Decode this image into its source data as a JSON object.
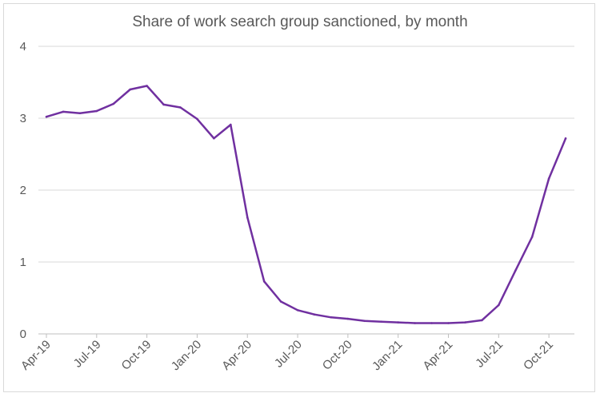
{
  "chart_data": {
    "type": "line",
    "title": "Share of work search group sanctioned, by month",
    "xlabel": "",
    "ylabel": "",
    "ylim": [
      0,
      4
    ],
    "yticks": [
      "0",
      "1",
      "2",
      "3",
      "4"
    ],
    "grid": true,
    "legend": "none",
    "line_color": "#7030a0",
    "categories": [
      "Apr-19",
      "May-19",
      "Jun-19",
      "Jul-19",
      "Aug-19",
      "Sep-19",
      "Oct-19",
      "Nov-19",
      "Dec-19",
      "Jan-20",
      "Feb-20",
      "Mar-20",
      "Apr-20",
      "May-20",
      "Jun-20",
      "Jul-20",
      "Aug-20",
      "Sep-20",
      "Oct-20",
      "Nov-20",
      "Dec-20",
      "Jan-21",
      "Feb-21",
      "Mar-21",
      "Apr-21",
      "May-21",
      "Jun-21",
      "Jul-21",
      "Aug-21",
      "Sep-21",
      "Oct-21",
      "Nov-21"
    ],
    "xtick_labels": [
      {
        "index": 0,
        "label": "Apr-19"
      },
      {
        "index": 3,
        "label": "Jul-19"
      },
      {
        "index": 6,
        "label": "Oct-19"
      },
      {
        "index": 9,
        "label": "Jan-20"
      },
      {
        "index": 12,
        "label": "Apr-20"
      },
      {
        "index": 15,
        "label": "Jul-20"
      },
      {
        "index": 18,
        "label": "Oct-20"
      },
      {
        "index": 21,
        "label": "Jan-21"
      },
      {
        "index": 24,
        "label": "Apr-21"
      },
      {
        "index": 27,
        "label": "Jul-21"
      },
      {
        "index": 30,
        "label": "Oct-21"
      }
    ],
    "series": [
      {
        "values": [
          3.02,
          3.09,
          3.07,
          3.1,
          3.2,
          3.4,
          3.45,
          3.19,
          3.15,
          2.99,
          2.72,
          2.91,
          1.62,
          0.73,
          0.45,
          0.33,
          0.27,
          0.23,
          0.21,
          0.18,
          0.17,
          0.16,
          0.15,
          0.15,
          0.15,
          0.16,
          0.19,
          0.4,
          0.88,
          1.35,
          2.16,
          2.72
        ]
      }
    ]
  }
}
